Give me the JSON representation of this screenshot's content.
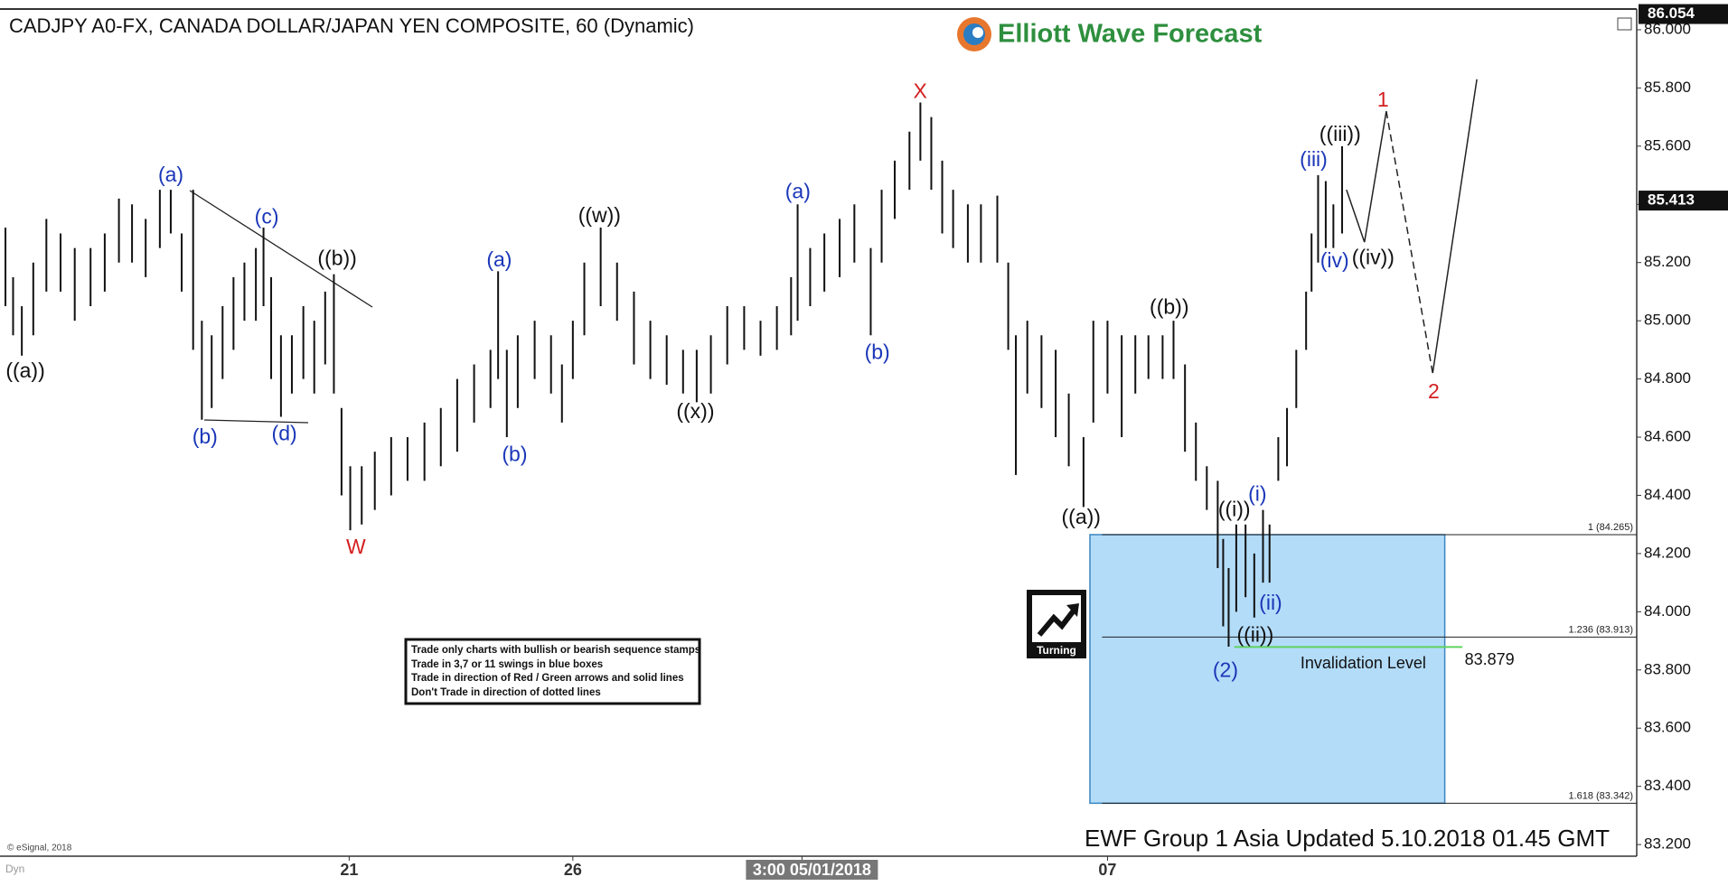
{
  "chart_data": {
    "type": "hlbar",
    "title": "CADJPY A0-FX, CANADA DOLLAR/JAPAN YEN COMPOSITE, 60 (Dynamic)",
    "logo_text": "Elliott Wave Forecast",
    "update_note": "EWF Group 1 Asia Updated 5.10.2018 01.45 GMT",
    "copyright": "© eSignal, 2018",
    "corner_tag": "Dyn",
    "turning_label": "Turning",
    "notes": [
      "Trade only charts with bullish or bearish sequence stamps",
      "Trade in 3,7 or 11 swings in blue boxes",
      "Trade in direction of Red / Green arrows and solid lines",
      "Don't Trade in direction of dotted lines"
    ],
    "bar_color": "#111111",
    "xlim": [
      0,
      300
    ],
    "xticks": [
      {
        "value": 64,
        "label": "21"
      },
      {
        "value": 105,
        "label": "26"
      },
      {
        "value": 147,
        "label": "3:00 05/01/2018"
      },
      {
        "value": 203,
        "label": "07"
      }
    ],
    "ylim": [
      83.16,
      86.065
    ],
    "yticks": [
      {
        "value": 83.2,
        "label": "83.200"
      },
      {
        "value": 83.4,
        "label": "83.400"
      },
      {
        "value": 83.6,
        "label": "83.600"
      },
      {
        "value": 83.8,
        "label": "83.800"
      },
      {
        "value": 84.0,
        "label": "84.000"
      },
      {
        "value": 84.2,
        "label": "84.200"
      },
      {
        "value": 84.4,
        "label": "84.400"
      },
      {
        "value": 84.6,
        "label": "84.600"
      },
      {
        "value": 84.8,
        "label": "84.800"
      },
      {
        "value": 85.0,
        "label": "85.000"
      },
      {
        "value": 85.2,
        "label": "85.200"
      },
      {
        "value": 85.4,
        "label": "85.400"
      },
      {
        "value": 85.6,
        "label": "85.600"
      },
      {
        "value": 85.8,
        "label": "85.800"
      },
      {
        "value": 86.0,
        "label": "86.000"
      }
    ],
    "x": [
      1.0,
      2.4,
      4.0,
      6.1,
      8.5,
      11.1,
      13.7,
      16.6,
      19.2,
      21.8,
      24.2,
      26.7,
      29.3,
      31.3,
      33.3,
      35.4,
      37.0,
      38.8,
      40.8,
      42.8,
      44.8,
      46.9,
      48.3,
      49.7,
      51.5,
      53.5,
      55.6,
      57.6,
      59.6,
      61.2,
      62.6,
      64.2,
      66.3,
      68.7,
      71.7,
      74.7,
      77.8,
      80.8,
      83.8,
      86.9,
      89.9,
      91.3,
      92.9,
      94.9,
      98.0,
      101.0,
      103.0,
      105.0,
      107.1,
      110.1,
      113.1,
      116.2,
      119.2,
      122.2,
      125.2,
      127.7,
      130.3,
      133.3,
      136.4,
      139.4,
      142.4,
      145.0,
      146.2,
      148.5,
      151.1,
      153.9,
      156.6,
      159.6,
      161.6,
      164.0,
      166.7,
      168.7,
      170.7,
      172.7,
      174.7,
      177.4,
      179.8,
      182.8,
      184.8,
      186.2,
      188.3,
      190.9,
      193.5,
      195.9,
      198.6,
      200.4,
      203.0,
      205.6,
      208.1,
      210.5,
      213.1,
      215.1,
      217.2,
      219.2,
      221.2,
      223.2,
      224.2,
      225.2,
      226.6,
      228.3,
      229.9,
      231.5,
      232.7,
      234.3,
      235.9,
      237.6,
      239.4,
      240.4,
      241.6,
      243.0,
      244.4,
      246.0
    ],
    "high": [
      85.32,
      85.15,
      85.05,
      85.2,
      85.35,
      85.3,
      85.25,
      85.25,
      85.3,
      85.42,
      85.4,
      85.35,
      85.45,
      85.45,
      85.3,
      85.45,
      85.0,
      84.95,
      85.05,
      85.15,
      85.2,
      85.25,
      85.32,
      85.15,
      84.95,
      84.95,
      85.05,
      85.0,
      85.1,
      85.16,
      84.7,
      84.5,
      84.5,
      84.55,
      84.6,
      84.6,
      84.65,
      84.7,
      84.8,
      84.85,
      84.9,
      85.17,
      84.9,
      84.95,
      85.0,
      84.95,
      84.85,
      85.0,
      85.2,
      85.32,
      85.2,
      85.1,
      85.0,
      84.95,
      84.9,
      84.9,
      84.95,
      85.05,
      85.05,
      85.0,
      85.05,
      85.15,
      85.4,
      85.25,
      85.3,
      85.35,
      85.4,
      85.25,
      85.45,
      85.55,
      85.65,
      85.75,
      85.7,
      85.55,
      85.45,
      85.4,
      85.4,
      85.43,
      85.2,
      84.95,
      85.0,
      84.95,
      84.9,
      84.75,
      84.6,
      85.0,
      85.0,
      84.95,
      84.95,
      84.95,
      84.95,
      85.0,
      84.85,
      84.65,
      84.5,
      84.45,
      84.25,
      84.15,
      84.3,
      84.3,
      84.2,
      84.35,
      84.3,
      84.6,
      84.7,
      84.9,
      85.1,
      85.3,
      85.5,
      85.48,
      85.4,
      85.6
    ],
    "low": [
      85.05,
      84.95,
      84.88,
      84.95,
      85.1,
      85.1,
      85.0,
      85.05,
      85.1,
      85.2,
      85.2,
      85.15,
      85.25,
      85.3,
      85.1,
      84.9,
      84.66,
      84.7,
      84.8,
      84.9,
      85.0,
      85.0,
      85.05,
      84.8,
      84.67,
      84.75,
      84.8,
      84.75,
      84.85,
      84.75,
      84.4,
      84.28,
      84.3,
      84.35,
      84.4,
      84.45,
      84.45,
      84.5,
      84.55,
      84.65,
      84.7,
      84.8,
      84.6,
      84.7,
      84.8,
      84.75,
      84.65,
      84.8,
      84.95,
      85.05,
      85.0,
      84.85,
      84.8,
      84.78,
      84.75,
      84.72,
      84.75,
      84.85,
      84.9,
      84.88,
      84.9,
      84.95,
      85.0,
      85.05,
      85.1,
      85.15,
      85.2,
      84.95,
      85.2,
      85.35,
      85.45,
      85.55,
      85.45,
      85.3,
      85.25,
      85.2,
      85.2,
      85.2,
      84.9,
      84.47,
      84.75,
      84.7,
      84.6,
      84.5,
      84.36,
      84.65,
      84.75,
      84.6,
      84.75,
      84.8,
      84.8,
      84.8,
      84.55,
      84.45,
      84.35,
      84.15,
      83.95,
      83.88,
      84.0,
      84.05,
      83.98,
      84.1,
      84.1,
      84.45,
      84.5,
      84.7,
      84.9,
      85.1,
      85.2,
      85.25,
      85.25,
      85.3
    ],
    "projection": {
      "x": [
        246.8,
        250.1,
        254.1,
        262.6,
        270.7
      ],
      "y": [
        85.45,
        85.27,
        85.72,
        84.82,
        85.83
      ],
      "dashed": [
        false,
        false,
        true,
        false
      ]
    },
    "last_price": 85.413,
    "high_tag": 86.054,
    "fib_levels": [
      {
        "value": 84.265,
        "label": "1 (84.265)"
      },
      {
        "value": 83.913,
        "label": "1.236 (83.913)"
      },
      {
        "value": 83.342,
        "label": "1.618 (83.342)"
      }
    ],
    "box_color": "#b3dcf9",
    "invalidation": {
      "value": 83.879,
      "text": "Invalidation Level",
      "color": "#5fd35f"
    },
    "wave_labels": [
      {
        "label": "((a))",
        "color": "#111111"
      },
      {
        "label": "(a)",
        "color": "#1a36b8"
      },
      {
        "label": "(b)",
        "color": "#1a36b8"
      },
      {
        "label": "(c)",
        "color": "#1a36b8"
      },
      {
        "label": "(d)",
        "color": "#1a36b8"
      },
      {
        "label": "((b))",
        "color": "#111111"
      },
      {
        "label": "W",
        "color": "#d41f1f"
      },
      {
        "label": "(a)",
        "color": "#1a36b8"
      },
      {
        "label": "(b)",
        "color": "#1a36b8"
      },
      {
        "label": "((w))",
        "color": "#111111"
      },
      {
        "label": "((x))",
        "color": "#111111"
      },
      {
        "label": "(a)",
        "color": "#1a36b8"
      },
      {
        "label": "(b)",
        "color": "#1a36b8"
      },
      {
        "label": "X",
        "color": "#d41f1f"
      },
      {
        "label": "((a))",
        "color": "#111111"
      },
      {
        "label": "((b))",
        "color": "#111111"
      },
      {
        "label": "((i))",
        "color": "#111111"
      },
      {
        "label": "(i)",
        "color": "#1a36b8"
      },
      {
        "label": "(ii)",
        "color": "#1a36b8"
      },
      {
        "label": "((ii))",
        "color": "#111111"
      },
      {
        "label": "(2)",
        "color": "#1a36b8"
      },
      {
        "label": "(iii)",
        "color": "#1a36b8"
      },
      {
        "label": "((iii))",
        "color": "#111111"
      },
      {
        "label": "(iv)",
        "color": "#1a36b8"
      },
      {
        "label": "((iv))",
        "color": "#111111"
      },
      {
        "label": "1",
        "color": "#d41f1f"
      },
      {
        "label": "2",
        "color": "#d41f1f"
      }
    ]
  }
}
